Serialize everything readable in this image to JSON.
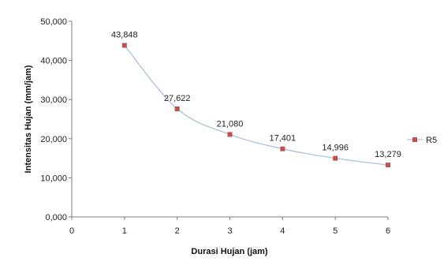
{
  "chart_data": {
    "type": "line",
    "title": "",
    "xlabel": "Durasi Hujan (jam)",
    "ylabel": "Intensitas Hujan (mm/jam)",
    "xlim": [
      0,
      6
    ],
    "ylim": [
      0,
      50000
    ],
    "x_ticks": [
      "0",
      "1",
      "2",
      "3",
      "4",
      "5",
      "6"
    ],
    "y_ticks": [
      "0,000",
      "10,000",
      "20,000",
      "30,000",
      "40,000",
      "50,000"
    ],
    "grid": false,
    "smooth": true,
    "legend_position": "right",
    "series": [
      {
        "name": "R5",
        "x": [
          1,
          2,
          3,
          4,
          5,
          6
        ],
        "values": [
          43848,
          27622,
          21080,
          17401,
          14996,
          13279
        ],
        "labels": [
          "43,848",
          "27,622",
          "21,080",
          "17,401",
          "14,996",
          "13,279"
        ],
        "line_color": "#a9c0e0",
        "marker_color": "#c0504d"
      }
    ]
  }
}
